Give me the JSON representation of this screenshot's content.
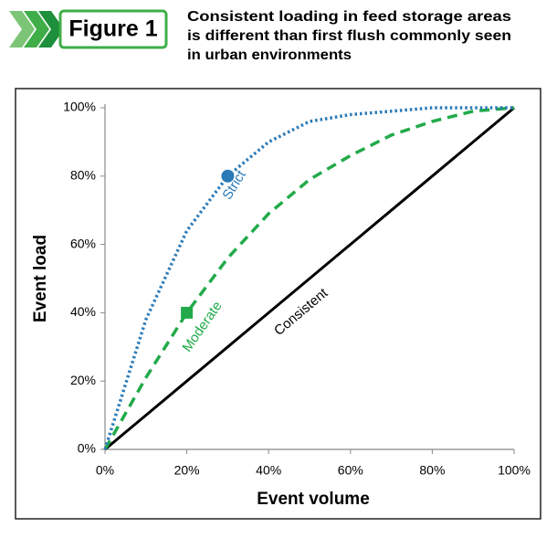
{
  "figure_label": "Figure 1",
  "chart_data": {
    "type": "line",
    "title": [
      "Consistent loading in feed storage areas",
      "is different than first flush commonly seen",
      "in urban environments"
    ],
    "x_label": "Event volume",
    "y_label": "Event load",
    "x": [
      0,
      10,
      20,
      30,
      40,
      50,
      60,
      70,
      80,
      90,
      100
    ],
    "series": [
      {
        "name": "Strict",
        "color": "#2a7ab8",
        "style": "dotted",
        "values": [
          0,
          38,
          64,
          80,
          90,
          96,
          98,
          99,
          100,
          100,
          100
        ],
        "marker": "circle",
        "point": [
          30,
          80
        ]
      },
      {
        "name": "Moderate",
        "color": "#22aa4a",
        "style": "dashed",
        "values": [
          0,
          21,
          40,
          56,
          69,
          79,
          86,
          92,
          96,
          99,
          100
        ],
        "marker": "square",
        "point": [
          20,
          40
        ]
      },
      {
        "name": "Consistent",
        "color": "#000000",
        "style": "solid",
        "values": [
          0,
          10,
          20,
          30,
          40,
          50,
          60,
          70,
          80,
          90,
          100
        ]
      }
    ],
    "xlim": [
      0,
      100
    ],
    "ylim": [
      0,
      100
    ],
    "xticks": [
      {
        "value": 0,
        "label": "0%"
      },
      {
        "value": 20,
        "label": "20%"
      },
      {
        "value": 40,
        "label": "40%"
      },
      {
        "value": 60,
        "label": "60%"
      },
      {
        "value": 80,
        "label": "80%"
      },
      {
        "value": 100,
        "label": "100%"
      }
    ],
    "yticks": [
      {
        "value": 0,
        "label": "0%"
      },
      {
        "value": 20,
        "label": "20%"
      },
      {
        "value": 40,
        "label": "40%"
      },
      {
        "value": 60,
        "label": "60%"
      },
      {
        "value": 80,
        "label": "80%"
      },
      {
        "value": 100,
        "label": "100%"
      }
    ],
    "grid": false
  }
}
